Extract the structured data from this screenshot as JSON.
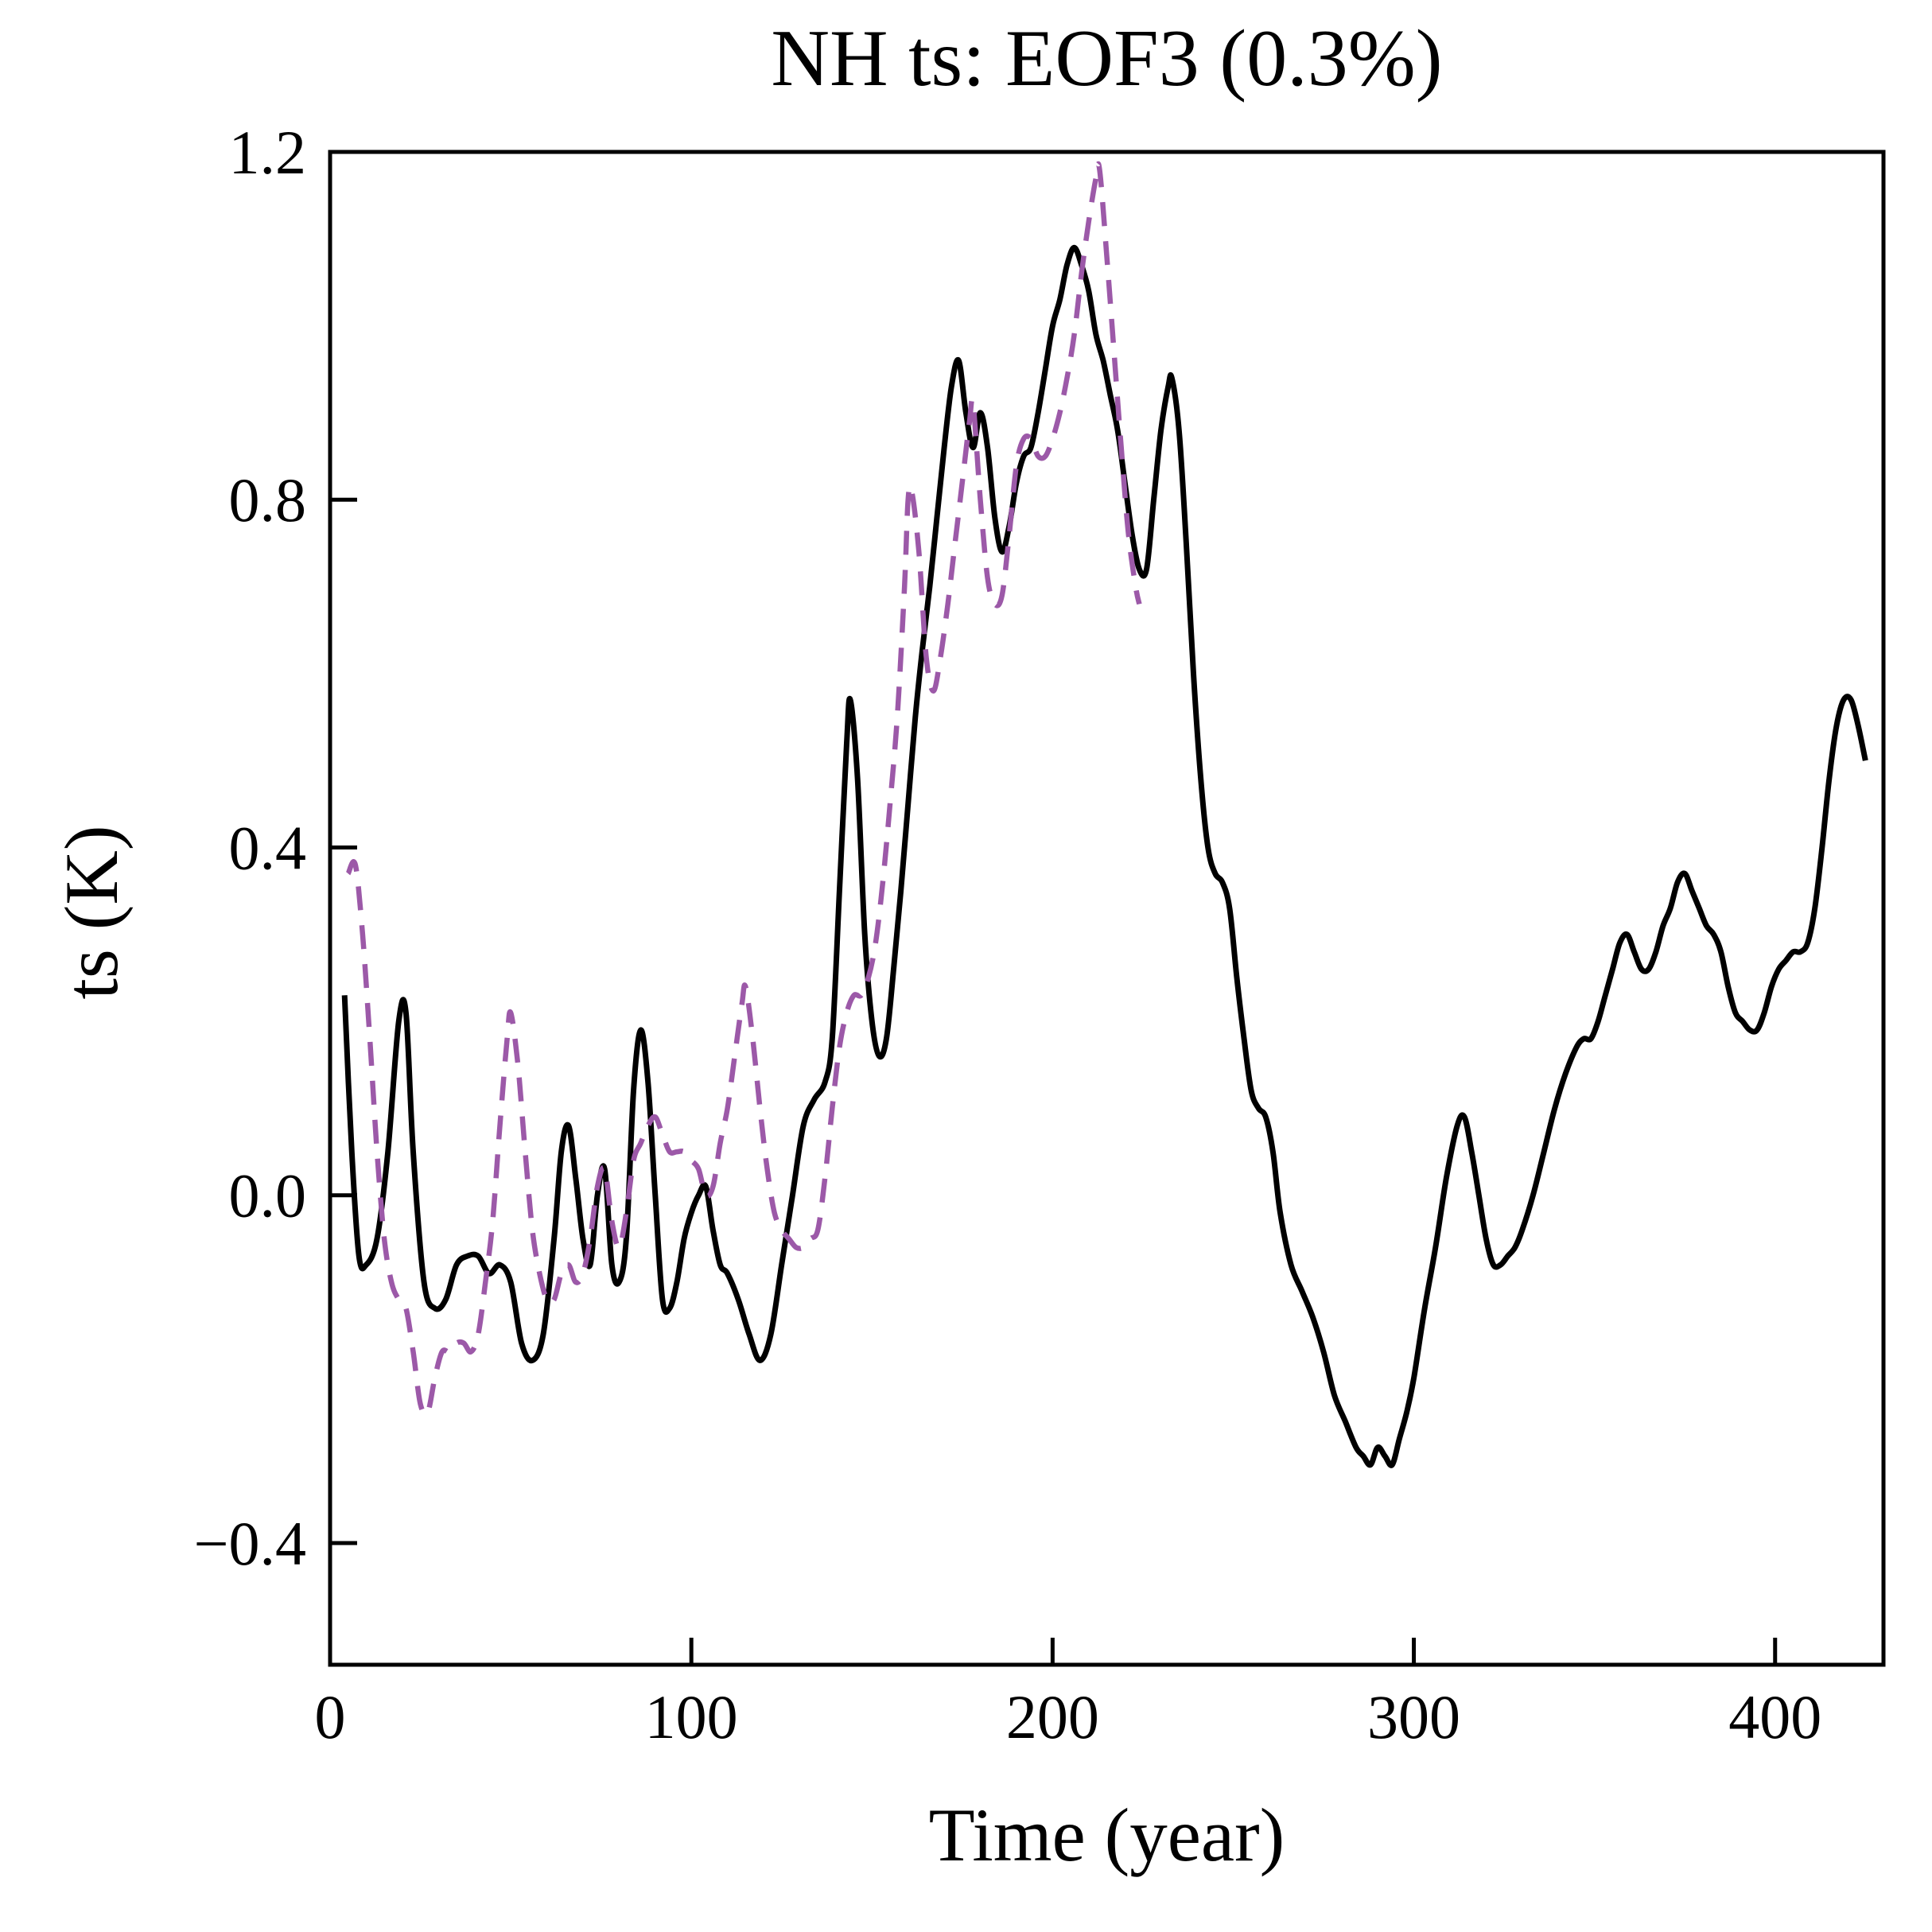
{
  "chart_data": {
    "type": "line",
    "title": "NH ts: EOF3 (0.3%)",
    "xlabel": "Time (year)",
    "ylabel": "ts (K)",
    "xlim": [
      0,
      430
    ],
    "ylim": [
      -0.54,
      1.2
    ],
    "grid": false,
    "legend": "none",
    "frame_color": "#000000",
    "xticks": [
      0,
      100,
      200,
      300,
      400
    ],
    "xtick_labels": [
      "0",
      "100",
      "200",
      "300",
      "400"
    ],
    "yticks": [
      -0.4,
      0.0,
      0.4,
      0.8,
      1.2
    ],
    "ytick_labels": [
      "−0.4",
      "0.0",
      "0.4",
      "0.8",
      "1.2"
    ],
    "series": [
      {
        "name": "ts-solid-black",
        "color": "#000000",
        "style": "solid",
        "width": 7,
        "points": [
          [
            4,
            0.23
          ],
          [
            6,
            0.05
          ],
          [
            8,
            -0.07
          ],
          [
            10,
            -0.08
          ],
          [
            13,
            -0.05
          ],
          [
            16,
            0.05
          ],
          [
            19,
            0.2
          ],
          [
            21,
            0.21
          ],
          [
            23,
            0.05
          ],
          [
            26,
            -0.1
          ],
          [
            29,
            -0.13
          ],
          [
            32,
            -0.12
          ],
          [
            35,
            -0.08
          ],
          [
            38,
            -0.07
          ],
          [
            41,
            -0.07
          ],
          [
            44,
            -0.09
          ],
          [
            47,
            -0.08
          ],
          [
            50,
            -0.1
          ],
          [
            53,
            -0.17
          ],
          [
            56,
            -0.19
          ],
          [
            59,
            -0.16
          ],
          [
            62,
            -0.05
          ],
          [
            64,
            0.05
          ],
          [
            66,
            0.08
          ],
          [
            68,
            0.02
          ],
          [
            70,
            -0.05
          ],
          [
            72,
            -0.08
          ],
          [
            74,
            0.0
          ],
          [
            76,
            0.03
          ],
          [
            78,
            -0.08
          ],
          [
            80,
            -0.1
          ],
          [
            82,
            -0.05
          ],
          [
            84,
            0.12
          ],
          [
            86,
            0.19
          ],
          [
            88,
            0.13
          ],
          [
            90,
            0.0
          ],
          [
            92,
            -0.12
          ],
          [
            94,
            -0.13
          ],
          [
            96,
            -0.1
          ],
          [
            98,
            -0.05
          ],
          [
            100,
            -0.02
          ],
          [
            102,
            0.0
          ],
          [
            104,
            0.01
          ],
          [
            106,
            -0.04
          ],
          [
            108,
            -0.08
          ],
          [
            110,
            -0.09
          ],
          [
            113,
            -0.12
          ],
          [
            116,
            -0.16
          ],
          [
            119,
            -0.19
          ],
          [
            122,
            -0.16
          ],
          [
            125,
            -0.08
          ],
          [
            128,
            0.0
          ],
          [
            131,
            0.08
          ],
          [
            134,
            0.11
          ],
          [
            137,
            0.13
          ],
          [
            139,
            0.18
          ],
          [
            141,
            0.35
          ],
          [
            143,
            0.52
          ],
          [
            144,
            0.57
          ],
          [
            146,
            0.48
          ],
          [
            148,
            0.3
          ],
          [
            150,
            0.2
          ],
          [
            152,
            0.16
          ],
          [
            154,
            0.18
          ],
          [
            156,
            0.26
          ],
          [
            158,
            0.35
          ],
          [
            160,
            0.45
          ],
          [
            162,
            0.55
          ],
          [
            164,
            0.63
          ],
          [
            166,
            0.7
          ],
          [
            168,
            0.78
          ],
          [
            170,
            0.86
          ],
          [
            172,
            0.93
          ],
          [
            174,
            0.96
          ],
          [
            176,
            0.9
          ],
          [
            178,
            0.86
          ],
          [
            180,
            0.9
          ],
          [
            182,
            0.86
          ],
          [
            184,
            0.78
          ],
          [
            186,
            0.74
          ],
          [
            188,
            0.77
          ],
          [
            190,
            0.82
          ],
          [
            192,
            0.85
          ],
          [
            194,
            0.86
          ],
          [
            196,
            0.9
          ],
          [
            198,
            0.95
          ],
          [
            200,
            1.0
          ],
          [
            202,
            1.03
          ],
          [
            204,
            1.07
          ],
          [
            206,
            1.09
          ],
          [
            208,
            1.07
          ],
          [
            210,
            1.04
          ],
          [
            212,
            0.99
          ],
          [
            214,
            0.96
          ],
          [
            216,
            0.92
          ],
          [
            218,
            0.88
          ],
          [
            220,
            0.82
          ],
          [
            222,
            0.76
          ],
          [
            224,
            0.72
          ],
          [
            226,
            0.72
          ],
          [
            228,
            0.8
          ],
          [
            230,
            0.88
          ],
          [
            232,
            0.93
          ],
          [
            233,
            0.94
          ],
          [
            235,
            0.88
          ],
          [
            237,
            0.75
          ],
          [
            239,
            0.6
          ],
          [
            241,
            0.48
          ],
          [
            243,
            0.4
          ],
          [
            245,
            0.37
          ],
          [
            247,
            0.36
          ],
          [
            249,
            0.33
          ],
          [
            251,
            0.25
          ],
          [
            253,
            0.18
          ],
          [
            255,
            0.12
          ],
          [
            257,
            0.1
          ],
          [
            259,
            0.09
          ],
          [
            261,
            0.05
          ],
          [
            263,
            -0.02
          ],
          [
            266,
            -0.08
          ],
          [
            269,
            -0.11
          ],
          [
            272,
            -0.14
          ],
          [
            275,
            -0.18
          ],
          [
            278,
            -0.23
          ],
          [
            281,
            -0.26
          ],
          [
            284,
            -0.29
          ],
          [
            286,
            -0.3
          ],
          [
            288,
            -0.31
          ],
          [
            290,
            -0.29
          ],
          [
            292,
            -0.3
          ],
          [
            294,
            -0.31
          ],
          [
            296,
            -0.28
          ],
          [
            298,
            -0.25
          ],
          [
            300,
            -0.21
          ],
          [
            303,
            -0.13
          ],
          [
            306,
            -0.06
          ],
          [
            309,
            0.02
          ],
          [
            312,
            0.08
          ],
          [
            314,
            0.09
          ],
          [
            316,
            0.05
          ],
          [
            318,
            0.0
          ],
          [
            320,
            -0.05
          ],
          [
            322,
            -0.08
          ],
          [
            324,
            -0.08
          ],
          [
            326,
            -0.07
          ],
          [
            328,
            -0.06
          ],
          [
            330,
            -0.04
          ],
          [
            333,
            0.0
          ],
          [
            336,
            0.05
          ],
          [
            339,
            0.1
          ],
          [
            342,
            0.14
          ],
          [
            345,
            0.17
          ],
          [
            347,
            0.18
          ],
          [
            349,
            0.18
          ],
          [
            351,
            0.2
          ],
          [
            353,
            0.23
          ],
          [
            355,
            0.26
          ],
          [
            357,
            0.29
          ],
          [
            359,
            0.3
          ],
          [
            361,
            0.28
          ],
          [
            363,
            0.26
          ],
          [
            365,
            0.26
          ],
          [
            367,
            0.28
          ],
          [
            369,
            0.31
          ],
          [
            371,
            0.33
          ],
          [
            373,
            0.36
          ],
          [
            375,
            0.37
          ],
          [
            377,
            0.35
          ],
          [
            379,
            0.33
          ],
          [
            381,
            0.31
          ],
          [
            383,
            0.3
          ],
          [
            385,
            0.28
          ],
          [
            387,
            0.24
          ],
          [
            389,
            0.21
          ],
          [
            391,
            0.2
          ],
          [
            393,
            0.19
          ],
          [
            395,
            0.19
          ],
          [
            397,
            0.21
          ],
          [
            399,
            0.24
          ],
          [
            401,
            0.26
          ],
          [
            403,
            0.27
          ],
          [
            405,
            0.28
          ],
          [
            407,
            0.28
          ],
          [
            409,
            0.29
          ],
          [
            411,
            0.33
          ],
          [
            413,
            0.4
          ],
          [
            415,
            0.48
          ],
          [
            417,
            0.54
          ],
          [
            419,
            0.57
          ],
          [
            421,
            0.57
          ],
          [
            423,
            0.54
          ],
          [
            425,
            0.5
          ]
        ]
      },
      {
        "name": "ts-dashed-purple",
        "color": "#9c59a8",
        "style": "dashed",
        "width": 6.5,
        "points": [
          [
            5,
            0.37
          ],
          [
            7,
            0.38
          ],
          [
            9,
            0.3
          ],
          [
            11,
            0.18
          ],
          [
            13,
            0.05
          ],
          [
            15,
            -0.05
          ],
          [
            17,
            -0.1
          ],
          [
            19,
            -0.12
          ],
          [
            21,
            -0.13
          ],
          [
            23,
            -0.18
          ],
          [
            25,
            -0.24
          ],
          [
            27,
            -0.25
          ],
          [
            29,
            -0.21
          ],
          [
            31,
            -0.18
          ],
          [
            33,
            -0.18
          ],
          [
            35,
            -0.17
          ],
          [
            37,
            -0.17
          ],
          [
            39,
            -0.18
          ],
          [
            41,
            -0.16
          ],
          [
            43,
            -0.1
          ],
          [
            45,
            -0.03
          ],
          [
            47,
            0.08
          ],
          [
            49,
            0.18
          ],
          [
            50,
            0.21
          ],
          [
            52,
            0.15
          ],
          [
            54,
            0.05
          ],
          [
            56,
            -0.04
          ],
          [
            58,
            -0.09
          ],
          [
            60,
            -0.12
          ],
          [
            62,
            -0.12
          ],
          [
            64,
            -0.09
          ],
          [
            66,
            -0.08
          ],
          [
            68,
            -0.1
          ],
          [
            70,
            -0.09
          ],
          [
            72,
            -0.05
          ],
          [
            74,
            0.01
          ],
          [
            76,
            0.03
          ],
          [
            78,
            -0.03
          ],
          [
            80,
            -0.06
          ],
          [
            82,
            -0.02
          ],
          [
            84,
            0.04
          ],
          [
            86,
            0.06
          ],
          [
            88,
            0.08
          ],
          [
            90,
            0.09
          ],
          [
            92,
            0.07
          ],
          [
            94,
            0.05
          ],
          [
            96,
            0.05
          ],
          [
            98,
            0.05
          ],
          [
            100,
            0.04
          ],
          [
            102,
            0.03
          ],
          [
            104,
            0.0
          ],
          [
            106,
            0.01
          ],
          [
            108,
            0.06
          ],
          [
            110,
            0.1
          ],
          [
            112,
            0.16
          ],
          [
            114,
            0.22
          ],
          [
            115,
            0.24
          ],
          [
            117,
            0.18
          ],
          [
            119,
            0.1
          ],
          [
            121,
            0.03
          ],
          [
            123,
            -0.02
          ],
          [
            125,
            -0.04
          ],
          [
            127,
            -0.05
          ],
          [
            129,
            -0.06
          ],
          [
            131,
            -0.06
          ],
          [
            133,
            -0.05
          ],
          [
            135,
            -0.04
          ],
          [
            137,
            0.02
          ],
          [
            139,
            0.1
          ],
          [
            141,
            0.17
          ],
          [
            143,
            0.21
          ],
          [
            145,
            0.23
          ],
          [
            147,
            0.23
          ],
          [
            149,
            0.25
          ],
          [
            151,
            0.29
          ],
          [
            153,
            0.36
          ],
          [
            155,
            0.45
          ],
          [
            157,
            0.55
          ],
          [
            159,
            0.7
          ],
          [
            160,
            0.8
          ],
          [
            161,
            0.81
          ],
          [
            163,
            0.74
          ],
          [
            165,
            0.62
          ],
          [
            167,
            0.58
          ],
          [
            169,
            0.62
          ],
          [
            171,
            0.68
          ],
          [
            173,
            0.75
          ],
          [
            175,
            0.82
          ],
          [
            177,
            0.89
          ],
          [
            178,
            0.91
          ],
          [
            180,
            0.8
          ],
          [
            182,
            0.71
          ],
          [
            184,
            0.68
          ],
          [
            186,
            0.69
          ],
          [
            188,
            0.76
          ],
          [
            190,
            0.84
          ],
          [
            192,
            0.87
          ],
          [
            194,
            0.87
          ],
          [
            196,
            0.85
          ],
          [
            198,
            0.85
          ],
          [
            200,
            0.87
          ],
          [
            202,
            0.9
          ],
          [
            204,
            0.94
          ],
          [
            206,
            0.99
          ],
          [
            208,
            1.06
          ],
          [
            210,
            1.12
          ],
          [
            212,
            1.17
          ],
          [
            213,
            1.18
          ],
          [
            215,
            1.08
          ],
          [
            217,
            0.97
          ],
          [
            219,
            0.86
          ],
          [
            221,
            0.76
          ],
          [
            223,
            0.7
          ],
          [
            224,
            0.68
          ]
        ]
      }
    ]
  }
}
